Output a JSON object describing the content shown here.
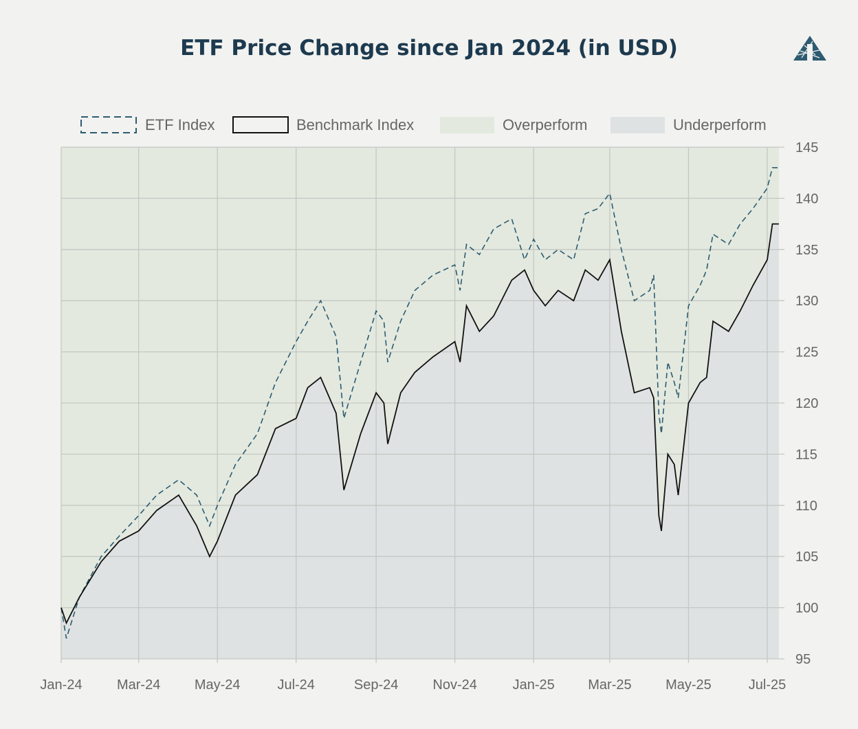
{
  "title": "ETF Price Change since Jan 2024 (in USD)",
  "logo": "pyramid-logo",
  "chart_data": {
    "type": "line",
    "title": "ETF Price Change since Jan 2024 (in USD)",
    "xlabel": "",
    "ylabel": "",
    "ylim": [
      95,
      145
    ],
    "y_ticks": [
      95,
      100,
      105,
      110,
      115,
      120,
      125,
      130,
      135,
      140,
      145
    ],
    "y_axis_side": "right",
    "x_range": [
      "2024-01-01",
      "2025-07-10"
    ],
    "x_ticks": [
      {
        "date": "2024-01-01",
        "label": "Jan-24"
      },
      {
        "date": "2024-03-01",
        "label": "Mar-24"
      },
      {
        "date": "2024-05-01",
        "label": "May-24"
      },
      {
        "date": "2024-07-01",
        "label": "Jul-24"
      },
      {
        "date": "2024-09-01",
        "label": "Sep-24"
      },
      {
        "date": "2024-11-01",
        "label": "Nov-24"
      },
      {
        "date": "2025-01-01",
        "label": "Jan-25"
      },
      {
        "date": "2025-03-01",
        "label": "Mar-25"
      },
      {
        "date": "2025-05-01",
        "label": "May-25"
      },
      {
        "date": "2025-07-01",
        "label": "Jul-25"
      }
    ],
    "grid": true,
    "legend_placement": "top",
    "legend": [
      {
        "label": "ETF Index",
        "style": "dashed",
        "color": "#2d5b70"
      },
      {
        "label": "Benchmark Index",
        "style": "solid",
        "color": "#111111"
      },
      {
        "label": "Overperform",
        "style": "fill",
        "color": "#e3e9df"
      },
      {
        "label": "Underperform",
        "style": "fill",
        "color": "#dfe2e2"
      }
    ],
    "x": [
      "2024-01-01",
      "2024-01-05",
      "2024-01-15",
      "2024-02-01",
      "2024-02-15",
      "2024-03-01",
      "2024-03-15",
      "2024-04-01",
      "2024-04-15",
      "2024-04-25",
      "2024-05-01",
      "2024-05-15",
      "2024-06-01",
      "2024-06-15",
      "2024-07-01",
      "2024-07-10",
      "2024-07-20",
      "2024-08-01",
      "2024-08-07",
      "2024-08-20",
      "2024-09-01",
      "2024-09-07",
      "2024-09-10",
      "2024-09-20",
      "2024-10-01",
      "2024-10-15",
      "2024-11-01",
      "2024-11-05",
      "2024-11-10",
      "2024-11-20",
      "2024-12-01",
      "2024-12-15",
      "2024-12-25",
      "2025-01-01",
      "2025-01-10",
      "2025-01-20",
      "2025-02-01",
      "2025-02-10",
      "2025-02-20",
      "2025-03-01",
      "2025-03-10",
      "2025-03-20",
      "2025-04-01",
      "2025-04-04",
      "2025-04-08",
      "2025-04-10",
      "2025-04-15",
      "2025-04-20",
      "2025-04-23",
      "2025-05-01",
      "2025-05-10",
      "2025-05-15",
      "2025-05-20",
      "2025-06-01",
      "2025-06-10",
      "2025-06-20",
      "2025-07-01",
      "2025-07-05",
      "2025-07-10"
    ],
    "series": [
      {
        "name": "ETF Index",
        "values": [
          100,
          97,
          101,
          105,
          107,
          109,
          111,
          112.5,
          111,
          108,
          110,
          114,
          117,
          122,
          126,
          128,
          130,
          126.5,
          118.5,
          124,
          129,
          128,
          124,
          128,
          131,
          132.5,
          133.5,
          131,
          135.5,
          134.5,
          137,
          138,
          134,
          136,
          134,
          135,
          134,
          138.5,
          139,
          140.5,
          135,
          130,
          131,
          132.5,
          119,
          117,
          124,
          122,
          120.5,
          129.5,
          131.5,
          133,
          136.5,
          135.5,
          137.5,
          139,
          141,
          143,
          143
        ]
      },
      {
        "name": "Benchmark Index",
        "values": [
          100,
          98.5,
          101,
          104.5,
          106.5,
          107.5,
          109.5,
          111,
          108,
          105,
          106.5,
          111,
          113,
          117.5,
          118.5,
          121.5,
          122.5,
          119,
          111.5,
          117,
          121,
          120,
          116,
          121,
          123,
          124.5,
          126,
          124,
          129.5,
          127,
          128.5,
          132,
          133,
          131,
          129.5,
          131,
          130,
          133,
          132,
          134,
          127,
          121,
          121.5,
          120.5,
          109,
          107.5,
          115,
          114,
          111,
          120,
          122,
          122.5,
          128,
          127,
          129,
          131.5,
          134,
          137.5,
          137.5
        ]
      }
    ]
  }
}
